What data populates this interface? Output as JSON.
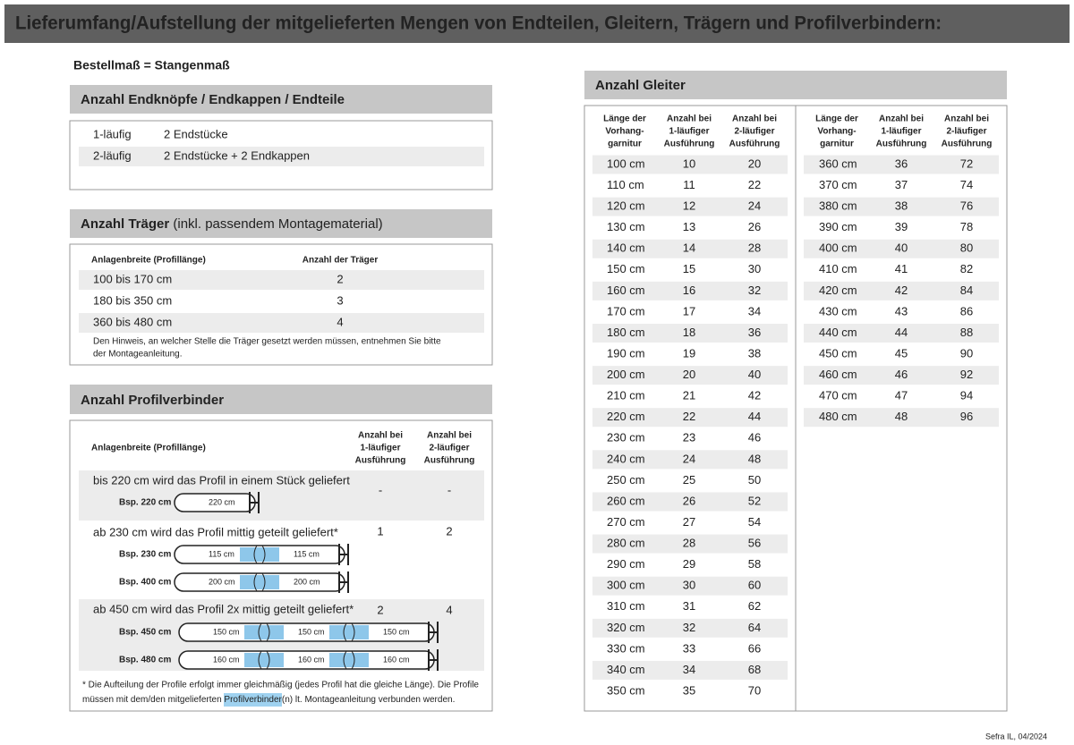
{
  "header": {
    "title": "Lieferumfang/Aufstellung der mitgelieferten Mengen von Endteilen, Gleitern, Trägern und Profilverbindern:"
  },
  "subtitle": "Bestellmaß = Stangenmaß",
  "endteile": {
    "title": "Anzahl Endknöpfe / Endkappen / Endteile",
    "rows": [
      [
        "1-läufig",
        "2 Endstücke"
      ],
      [
        "2-läufig",
        "2 Endstücke + 2 Endkappen"
      ]
    ]
  },
  "traeger": {
    "title": "Anzahl Träger",
    "title_suffix": " (inkl. passendem Montagematerial)",
    "headers": [
      "Anlagenbreite (Profillänge)",
      "Anzahl der Träger"
    ],
    "rows": [
      [
        "100 bis 170 cm",
        2
      ],
      [
        "180 bis 350 cm",
        3
      ],
      [
        "360 bis 480 cm",
        4
      ]
    ],
    "note": [
      "Den Hinweis, an welcher Stelle die Träger gesetzt werden müssen, entnehmen Sie bitte",
      "der Montageanleitung."
    ]
  },
  "profilverbinder": {
    "title": "Anzahl Profilverbinder",
    "headers": [
      [
        "Anlagenbreite (Profillänge)"
      ],
      [
        "Anzahl bei",
        "1-läufiger",
        "Ausführung"
      ],
      [
        "Anzahl bei",
        "2-läufiger",
        "Ausführung"
      ]
    ],
    "sections": [
      {
        "text": "bis 220 cm wird das Profil in einem Stück geliefert",
        "one": "-",
        "two": "-",
        "examples": [
          {
            "label": "Bsp. 220 cm",
            "segments": [
              "220 cm"
            ]
          }
        ]
      },
      {
        "text": "ab 230 cm wird das Profil mittig geteilt geliefert*",
        "one": 1,
        "two": 2,
        "examples": [
          {
            "label": "Bsp. 230 cm",
            "segments": [
              "115 cm",
              "115 cm"
            ]
          },
          {
            "label": "Bsp. 400 cm",
            "segments": [
              "200 cm",
              "200 cm"
            ]
          }
        ]
      },
      {
        "text": "ab 450 cm wird das Profil 2x mittig geteilt geliefert*",
        "one": 2,
        "two": 4,
        "examples": [
          {
            "label": "Bsp. 450 cm",
            "segments": [
              "150 cm",
              "150 cm",
              "150 cm"
            ]
          },
          {
            "label": "Bsp. 480 cm",
            "segments": [
              "160 cm",
              "160 cm",
              "160 cm"
            ]
          }
        ]
      }
    ],
    "footnote": [
      "* Die Aufteilung der Profile erfolgt immer gleichmäßig (jedes Profil hat die gleiche Länge). Die Profile",
      "müssen mit dem/den mitgelieferten ",
      "Profilverbinder",
      "(n) lt. Montageanleitung verbunden werden."
    ]
  },
  "gleiter": {
    "title": "Anzahl Gleiter",
    "headers": [
      [
        "Länge der",
        "Vorhang-",
        "garnitur"
      ],
      [
        "Anzahl bei",
        "1-läufiger",
        "Ausführung"
      ],
      [
        "Anzahl bei",
        "2-läufiger",
        "Ausführung"
      ]
    ],
    "left": [
      [
        "100 cm",
        10,
        20
      ],
      [
        "110 cm",
        11,
        22
      ],
      [
        "120 cm",
        12,
        24
      ],
      [
        "130 cm",
        13,
        26
      ],
      [
        "140 cm",
        14,
        28
      ],
      [
        "150 cm",
        15,
        30
      ],
      [
        "160 cm",
        16,
        32
      ],
      [
        "170 cm",
        17,
        34
      ],
      [
        "180 cm",
        18,
        36
      ],
      [
        "190 cm",
        19,
        38
      ],
      [
        "200 cm",
        20,
        40
      ],
      [
        "210 cm",
        21,
        42
      ],
      [
        "220 cm",
        22,
        44
      ],
      [
        "230 cm",
        23,
        46
      ],
      [
        "240 cm",
        24,
        48
      ],
      [
        "250 cm",
        25,
        50
      ],
      [
        "260 cm",
        26,
        52
      ],
      [
        "270 cm",
        27,
        54
      ],
      [
        "280 cm",
        28,
        56
      ],
      [
        "290 cm",
        29,
        58
      ],
      [
        "300 cm",
        30,
        60
      ],
      [
        "310 cm",
        31,
        62
      ],
      [
        "320 cm",
        32,
        64
      ],
      [
        "330 cm",
        33,
        66
      ],
      [
        "340 cm",
        34,
        68
      ],
      [
        "350 cm",
        35,
        70
      ]
    ],
    "right_headers": [
      [
        "Länge der",
        "Vorhang-",
        "garnitur"
      ],
      [
        "Anzahl bei",
        "1-läufiger",
        "Ausführung"
      ],
      [
        "Anzahl bei",
        "2-läufiger",
        "Ausführung"
      ]
    ],
    "right": [
      [
        "360 cm",
        36,
        72
      ],
      [
        "370 cm",
        37,
        74
      ],
      [
        "380 cm",
        38,
        76
      ],
      [
        "390 cm",
        39,
        78
      ],
      [
        "400 cm",
        40,
        80
      ],
      [
        "410 cm",
        41,
        82
      ],
      [
        "420 cm",
        42,
        84
      ],
      [
        "430 cm",
        43,
        86
      ],
      [
        "440 cm",
        44,
        88
      ],
      [
        "450 cm",
        45,
        90
      ],
      [
        "460 cm",
        46,
        92
      ],
      [
        "470 cm",
        47,
        94
      ],
      [
        "480 cm",
        48,
        96
      ]
    ]
  },
  "footer": "Sefra IL, 04/2024"
}
